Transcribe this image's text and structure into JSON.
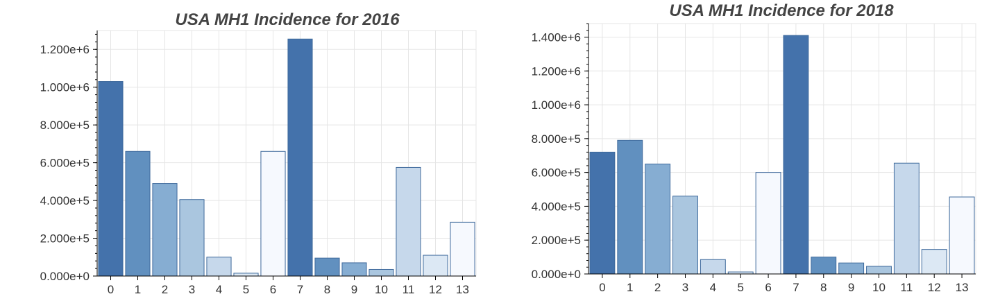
{
  "chart_data": [
    {
      "type": "bar",
      "title": "USA MH1 Incidence for 2016",
      "xlabel": "",
      "ylabel": "",
      "categories": [
        "0",
        "1",
        "2",
        "3",
        "4",
        "5",
        "6",
        "7",
        "8",
        "9",
        "10",
        "11",
        "12",
        "13"
      ],
      "values": [
        1030000,
        660000,
        490000,
        405000,
        100000,
        15000,
        660000,
        1255000,
        95000,
        70000,
        35000,
        575000,
        110000,
        285000
      ],
      "colors": [
        "#4472ab",
        "#6190bf",
        "#86add2",
        "#aac6df",
        "#c6d8eb",
        "#dce8f4",
        "#f6f9fe",
        "#4472ab",
        "#6190bf",
        "#86add2",
        "#aac6df",
        "#c6d8eb",
        "#dce8f4",
        "#f6f9fe"
      ],
      "ylim": [
        0,
        1300000
      ],
      "yticks": [
        0,
        200000,
        400000,
        600000,
        800000,
        1000000,
        1200000
      ],
      "ytick_labels": [
        "0.000e+0",
        "2.000e+5",
        "4.000e+5",
        "6.000e+5",
        "8.000e+5",
        "1.000e+6",
        "1.200e+6"
      ],
      "grid": true,
      "legend": "none"
    },
    {
      "type": "bar",
      "title": "USA MH1 Incidence for 2018",
      "xlabel": "",
      "ylabel": "",
      "categories": [
        "0",
        "1",
        "2",
        "3",
        "4",
        "5",
        "6",
        "7",
        "8",
        "9",
        "10",
        "11",
        "12",
        "13"
      ],
      "values": [
        720000,
        790000,
        650000,
        460000,
        85000,
        12000,
        600000,
        1410000,
        100000,
        65000,
        45000,
        655000,
        145000,
        455000
      ],
      "colors": [
        "#4472ab",
        "#6190bf",
        "#86add2",
        "#aac6df",
        "#c6d8eb",
        "#dce8f4",
        "#f6f9fe",
        "#4472ab",
        "#6190bf",
        "#86add2",
        "#aac6df",
        "#c6d8eb",
        "#dce8f4",
        "#f6f9fe"
      ],
      "ylim": [
        0,
        1480000
      ],
      "yticks": [
        0,
        200000,
        400000,
        600000,
        800000,
        1000000,
        1200000,
        1400000
      ],
      "ytick_labels": [
        "0.000e+0",
        "2.000e+5",
        "4.000e+5",
        "6.000e+5",
        "8.000e+5",
        "1.000e+6",
        "1.200e+6",
        "1.400e+6"
      ],
      "grid": true,
      "legend": "none"
    }
  ]
}
